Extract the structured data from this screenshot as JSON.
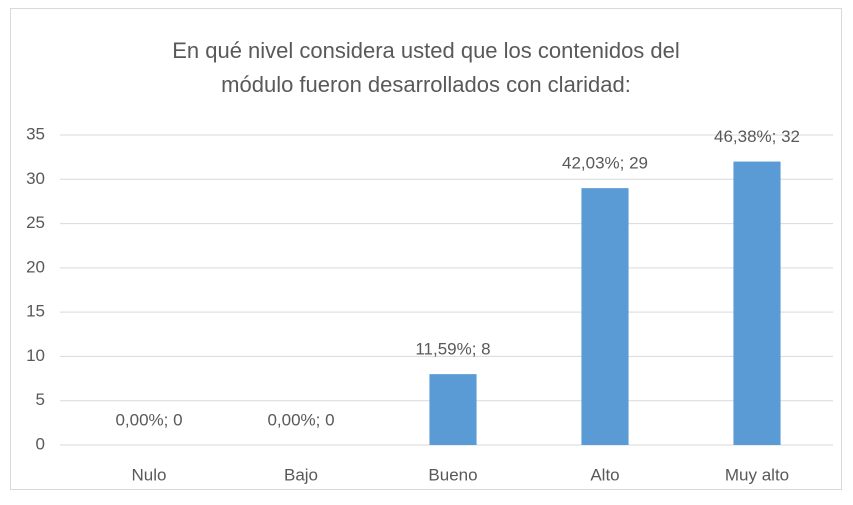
{
  "chart_data": {
    "type": "bar",
    "title": [
      "En qué nivel considera usted que los contenidos del",
      "módulo fueron desarrollados con claridad:"
    ],
    "categories": [
      "Nulo",
      "Bajo",
      "Bueno",
      "Alto",
      "Muy alto"
    ],
    "values": [
      0,
      0,
      8,
      29,
      32
    ],
    "value_labels": [
      "0,00%; 0",
      "0,00%; 0",
      "11,59%; 8",
      "42,03%; 29",
      "46,38%; 32"
    ],
    "color": "#5b9bd5",
    "ylim": [
      0,
      35
    ],
    "yticks": [
      0,
      5,
      10,
      15,
      20,
      25,
      30,
      35
    ],
    "grid": true
  }
}
